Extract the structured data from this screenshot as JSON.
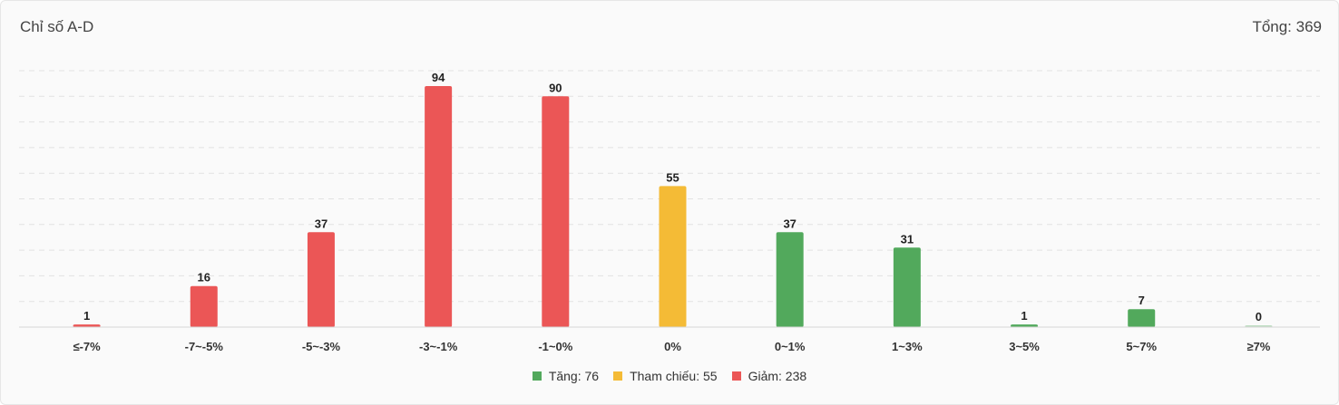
{
  "header": {
    "title": "Chỉ số A-D",
    "total_label": "Tổng: 369"
  },
  "legend": [
    {
      "label": "Tăng: 76",
      "color": "#52a95c"
    },
    {
      "label": "Tham chiếu: 55",
      "color": "#f4bb36"
    },
    {
      "label": "Giảm: 238",
      "color": "#eb5656"
    }
  ],
  "chart_data": {
    "type": "bar",
    "title": "Chỉ số A-D",
    "categories": [
      "≤-7%",
      "-7~-5%",
      "-5~-3%",
      "-3~-1%",
      "-1~0%",
      "0%",
      "0~1%",
      "1~3%",
      "3~5%",
      "5~7%",
      "≥7%"
    ],
    "values": [
      1,
      16,
      37,
      94,
      90,
      55,
      37,
      31,
      1,
      7,
      0
    ],
    "colors": [
      "#eb5656",
      "#eb5656",
      "#eb5656",
      "#eb5656",
      "#eb5656",
      "#f4bb36",
      "#52a95c",
      "#52a95c",
      "#52a95c",
      "#52a95c",
      "#52a95c"
    ],
    "ylim": [
      0,
      100
    ],
    "grid": true,
    "legend_position": "bottom"
  }
}
